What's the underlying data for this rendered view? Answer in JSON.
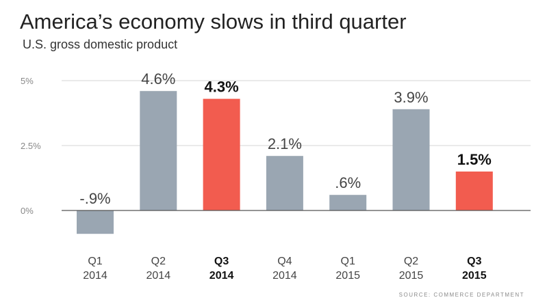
{
  "title": "America’s economy slows in third quarter",
  "subtitle": "U.S. gross domestic product",
  "source": "SOURCE: COMMERCE DEPARTMENT",
  "chart_data": {
    "type": "bar",
    "title": "America’s economy slows in third quarter",
    "subtitle": "U.S. gross domestic product",
    "xlabel": "",
    "ylabel": "",
    "ylim": [
      -1.0,
      5.0
    ],
    "yticks": [
      {
        "value": 0,
        "label": "0%"
      },
      {
        "value": 2.5,
        "label": "2.5%"
      },
      {
        "value": 5,
        "label": "5%"
      }
    ],
    "grid": true,
    "legend": "none",
    "categories": [
      {
        "quarter": "Q1",
        "year": "2014"
      },
      {
        "quarter": "Q2",
        "year": "2014"
      },
      {
        "quarter": "Q3",
        "year": "2014"
      },
      {
        "quarter": "Q4",
        "year": "2014"
      },
      {
        "quarter": "Q1",
        "year": "2015"
      },
      {
        "quarter": "Q2",
        "year": "2015"
      },
      {
        "quarter": "Q3",
        "year": "2015"
      }
    ],
    "values": [
      -0.9,
      4.6,
      4.3,
      2.1,
      0.6,
      3.9,
      1.5
    ],
    "labels": [
      "-.9%",
      "4.6%",
      "4.3%",
      "2.1%",
      ".6%",
      "3.9%",
      "1.5%"
    ],
    "highlighted": [
      false,
      false,
      true,
      false,
      false,
      false,
      true
    ],
    "colors": {
      "default": "#9aa6b2",
      "highlight": "#f25c4f",
      "grid": "#d4d4d4",
      "axis": "#555555",
      "tick_text": "#888888",
      "label_text": "#444444",
      "highlight_text": "#111111"
    }
  }
}
